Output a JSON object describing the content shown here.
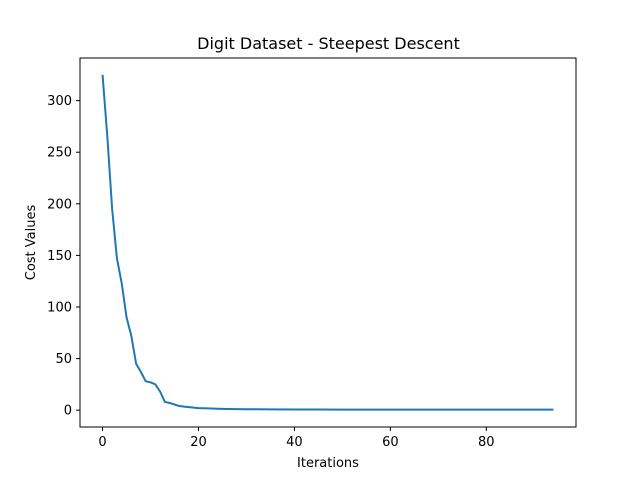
{
  "chart_data": {
    "type": "line",
    "title": "Digit Dataset - Steepest Descent",
    "xlabel": "Iterations",
    "ylabel": "Cost Values",
    "xlim": [
      -4.7,
      98.7
    ],
    "ylim": [
      -16.3,
      341.3
    ],
    "xticks": [
      0,
      20,
      40,
      60,
      80
    ],
    "yticks": [
      0,
      50,
      100,
      150,
      200,
      250,
      300
    ],
    "grid": false,
    "legend": "none",
    "series": [
      {
        "color": "#1f77b4",
        "x": [
          0,
          1,
          2,
          3,
          4,
          5,
          6,
          7,
          8,
          9,
          10,
          11,
          12,
          13,
          14,
          15,
          16,
          17,
          18,
          19,
          20,
          22,
          24,
          26,
          28,
          30,
          35,
          40,
          45,
          50,
          55,
          60,
          65,
          70,
          75,
          80,
          85,
          90,
          94
        ],
        "y": [
          325,
          265,
          195,
          147,
          123,
          90,
          72,
          45,
          37,
          28,
          27,
          25,
          18,
          8,
          7,
          5.5,
          4,
          3.5,
          3,
          2.5,
          2,
          1.7,
          1.4,
          1.2,
          1.0,
          0.9,
          0.8,
          0.6,
          0.6,
          0.5,
          0.5,
          0.5,
          0.5,
          0.5,
          0.5,
          0.5,
          0.5,
          0.5,
          0.5
        ]
      }
    ]
  }
}
